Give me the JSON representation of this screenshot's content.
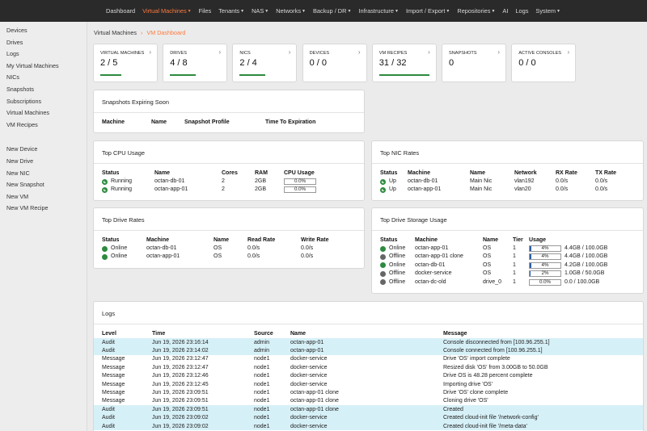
{
  "nav": {
    "items": [
      {
        "label": "Dashboard",
        "caret": false
      },
      {
        "label": "Virtual Machines",
        "caret": true,
        "active": true
      },
      {
        "label": "Files",
        "caret": false
      },
      {
        "label": "Tenants",
        "caret": true
      },
      {
        "label": "NAS",
        "caret": true
      },
      {
        "label": "Networks",
        "caret": true
      },
      {
        "label": "Backup / DR",
        "caret": true
      },
      {
        "label": "Infrastructure",
        "caret": true
      },
      {
        "label": "Import / Export",
        "caret": true
      },
      {
        "label": "Repositories",
        "caret": true
      },
      {
        "label": "AI",
        "caret": false
      },
      {
        "label": "Logs",
        "caret": false
      },
      {
        "label": "System",
        "caret": true
      }
    ],
    "caret_glyph": "▼"
  },
  "sidebar": {
    "group1": [
      "Devices",
      "Drives",
      "Logs",
      "My Virtual Machines",
      "NICs",
      "Snapshots",
      "Subscriptions",
      "Virtual Machines",
      "VM Recipes"
    ],
    "group2": [
      "New Device",
      "New Drive",
      "New NIC",
      "New Snapshot",
      "New VM",
      "New VM Recipe"
    ]
  },
  "breadcrumb": {
    "parent": "Virtual Machines",
    "separator": "›",
    "current": "VM Dashboard"
  },
  "cards": [
    {
      "title": "Virtual Machines",
      "value": "2 / 5",
      "fill": 0.4
    },
    {
      "title": "Drives",
      "value": "4 / 8",
      "fill": 0.5
    },
    {
      "title": "NICs",
      "value": "2 / 4",
      "fill": 0.5
    },
    {
      "title": "Devices",
      "value": "0 / 0",
      "fill": 0
    },
    {
      "title": "VM Recipes",
      "value": "31 / 32",
      "fill": 0.97
    },
    {
      "title": "Snapshots",
      "value": "0",
      "fill": 0
    },
    {
      "title": "Active Consoles",
      "value": "0 / 0",
      "fill": 0
    }
  ],
  "snapshots_panel": {
    "title": "Snapshots Expiring Soon",
    "headers": [
      "Machine",
      "Name",
      "Snapshot Profile",
      "Time To Expiration"
    ]
  },
  "cpu_panel": {
    "title": "Top CPU Usage",
    "headers": [
      "Status",
      "Name",
      "Cores",
      "RAM",
      "CPU Usage"
    ],
    "rows": [
      {
        "status": "Running",
        "name": "octan-db-01",
        "cores": "2",
        "ram": "2GB",
        "cpu": "0.0%",
        "cpu_fill": 0
      },
      {
        "status": "Running",
        "name": "octan-app-01",
        "cores": "2",
        "ram": "2GB",
        "cpu": "0.0%",
        "cpu_fill": 0
      }
    ]
  },
  "nic_panel": {
    "title": "Top NIC Rates",
    "headers": [
      "Status",
      "Machine",
      "Name",
      "Network",
      "RX Rate",
      "TX Rate"
    ],
    "rows": [
      {
        "status": "Up",
        "machine": "octan-db-01",
        "name": "Main Nic",
        "network": "vlan192",
        "rx": "0.0/s",
        "tx": "0.0/s"
      },
      {
        "status": "Up",
        "machine": "octan-app-01",
        "name": "Main Nic",
        "network": "vlan20",
        "rx": "0.0/s",
        "tx": "0.0/s"
      }
    ]
  },
  "drive_rates_panel": {
    "title": "Top Drive Rates",
    "headers": [
      "Status",
      "Machine",
      "Name",
      "Read Rate",
      "Write Rate"
    ],
    "rows": [
      {
        "status": "Online",
        "machine": "octan-db-01",
        "name": "OS",
        "read": "0.0/s",
        "write": "0.0/s"
      },
      {
        "status": "Online",
        "machine": "octan-app-01",
        "name": "OS",
        "read": "0.0/s",
        "write": "0.0/s"
      }
    ]
  },
  "storage_panel": {
    "title": "Top Drive Storage Usage",
    "headers": [
      "Status",
      "Machine",
      "Name",
      "Tier",
      "Usage"
    ],
    "rows": [
      {
        "status": "Online",
        "state": "ok",
        "machine": "octan-app-01",
        "name": "OS",
        "tier": "1",
        "pct": "4%",
        "fill": 0.04,
        "size": "4.4GB / 100.0GB"
      },
      {
        "status": "Offline",
        "state": "off",
        "machine": "octan-app-01 clone",
        "name": "OS",
        "tier": "1",
        "pct": "4%",
        "fill": 0.04,
        "size": "4.4GB / 100.0GB"
      },
      {
        "status": "Online",
        "state": "ok",
        "machine": "octan-db-01",
        "name": "OS",
        "tier": "1",
        "pct": "4%",
        "fill": 0.04,
        "size": "4.2GB / 100.0GB"
      },
      {
        "status": "Offline",
        "state": "off",
        "machine": "docker-service",
        "name": "OS",
        "tier": "1",
        "pct": "2%",
        "fill": 0.02,
        "size": "1.0GB / 50.0GB"
      },
      {
        "status": "Offline",
        "state": "off",
        "machine": "octan-dc-old",
        "name": "drive_0",
        "tier": "1",
        "pct": "0.0%",
        "fill": 0,
        "size": "0.0 / 100.0GB"
      }
    ]
  },
  "logs_panel": {
    "title": "Logs",
    "headers": [
      "Level",
      "Time",
      "Source",
      "Name",
      "Message"
    ],
    "rows": [
      {
        "level": "Audit",
        "time": "Jun 19, 2026 23:16:14",
        "source": "admin",
        "name": "octan-app-01",
        "message": "Console disconnected from [100.96.255.1]"
      },
      {
        "level": "Audit",
        "time": "Jun 19, 2026 23:14:02",
        "source": "admin",
        "name": "octan-app-01",
        "message": "Console connected from [100.96.255.1]"
      },
      {
        "level": "Message",
        "time": "Jun 19, 2026 23:12:47",
        "source": "node1",
        "name": "docker-service",
        "message": "Drive 'OS' import complete"
      },
      {
        "level": "Message",
        "time": "Jun 19, 2026 23:12:47",
        "source": "node1",
        "name": "docker-service",
        "message": "Resized disk 'OS' from 3.00GB to 50.0GB"
      },
      {
        "level": "Message",
        "time": "Jun 19, 2026 23:12:46",
        "source": "node1",
        "name": "docker-service",
        "message": "Drive OS is 48.28 percent complete"
      },
      {
        "level": "Message",
        "time": "Jun 19, 2026 23:12:45",
        "source": "node1",
        "name": "docker-service",
        "message": "Importing drive 'OS'"
      },
      {
        "level": "Message",
        "time": "Jun 19, 2026 23:09:51",
        "source": "node1",
        "name": "octan-app-01 clone",
        "message": "Drive 'OS' clone complete"
      },
      {
        "level": "Message",
        "time": "Jun 19, 2026 23:09:51",
        "source": "node1",
        "name": "octan-app-01 clone",
        "message": "Cloning drive 'OS'"
      },
      {
        "level": "Audit",
        "time": "Jun 19, 2026 23:09:51",
        "source": "node1",
        "name": "octan-app-01 clone",
        "message": "Created"
      },
      {
        "level": "Audit",
        "time": "Jun 19, 2026 23:09:02",
        "source": "node1",
        "name": "docker-service",
        "message": "Created cloud-init file '/network-config'"
      },
      {
        "level": "Audit",
        "time": "Jun 19, 2026 23:09:02",
        "source": "node1",
        "name": "docker-service",
        "message": "Created cloud-init file '/meta-data'"
      }
    ]
  },
  "colors": {
    "accent": "#ff7a3d",
    "ok": "#2d8a3e",
    "offline": "#666666",
    "audit_row": "#d6f0f7",
    "usage_fill": "#2f5fa8"
  },
  "icons": {
    "chevron": "›"
  }
}
